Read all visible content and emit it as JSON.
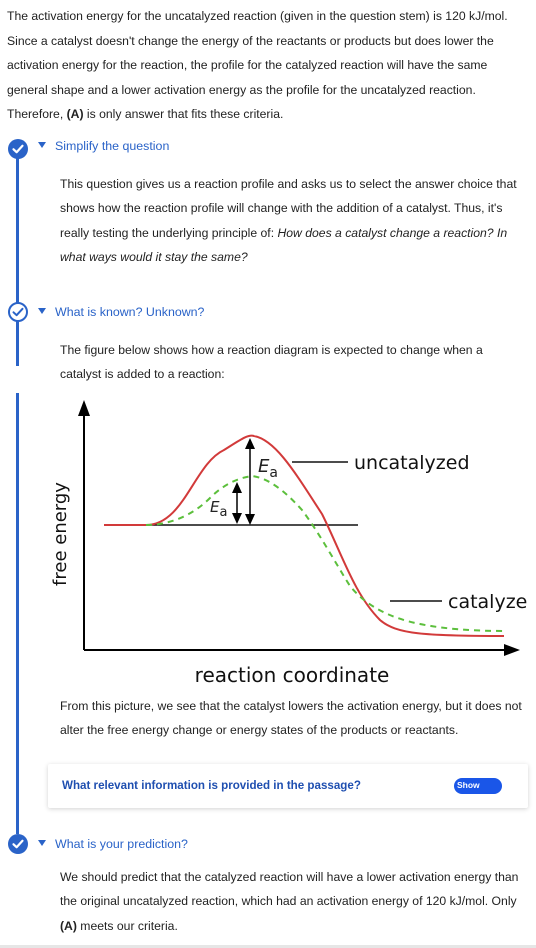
{
  "intro": {
    "line1": "The activation energy for the uncatalyzed reaction (given in the question stem) is 120 kJ/mol.",
    "line2": "Since a catalyst doesn't change the energy of the reactants or products but does lower the",
    "line3": "activation energy for the reaction, the profile for the catalyzed reaction will have the same",
    "line4": "general shape and a lower activation energy as the profile for the uncatalyzed reaction.",
    "line5_before": "Therefore, ",
    "line5_bold": "(A)",
    "line5_after": " is only answer that fits these criteria."
  },
  "steps": [
    {
      "title": "Simplify the question",
      "line1": "This question gives us a reaction profile and asks us to select the answer choice that",
      "line2": "shows how the reaction profile will change with the addition of a catalyst. Thus, it's",
      "line3_plain": "really testing the underlying principle of: ",
      "line3_italic": "How does a catalyst change a reaction? In",
      "line4_italic": "what ways would it stay the same?"
    },
    {
      "title": "What is known? Unknown?",
      "line1": "The figure below shows how a reaction diagram is expected to change when a",
      "line2": "catalyst is added to a reaction:",
      "after1": "From this picture, we see that the catalyst lowers the activation energy, but it does not",
      "after2": "alter the free energy change or energy states of the products or reactants."
    },
    {
      "title": "What is your prediction?",
      "line1": "We should predict that the catalyzed reaction will have a lower activation energy than",
      "line2": "the original uncatalyzed reaction, which had an activation energy of 120 kJ/mol. Only",
      "line3_bold": "(A)",
      "line3_after": " meets our criteria."
    }
  ],
  "figure": {
    "ylabel": "free energy",
    "xlabel": "reaction coordinate",
    "label_uncatalyzed": "uncatalyzed",
    "label_catalyzed": "catalyze",
    "ea_letter": "E",
    "ea_sub": "a"
  },
  "info_card": {
    "question": "What relevant information is provided in the passage?",
    "toggle_label": "Show"
  },
  "colors": {
    "accent": "#2a63c8",
    "uncatalyzed_curve": "#d23a3a",
    "catalyzed_curve": "#5cbf3c",
    "toggle": "#1a56e8"
  },
  "icons": {
    "step_check": "check-circle-icon",
    "step_caret": "caret-down-icon"
  }
}
